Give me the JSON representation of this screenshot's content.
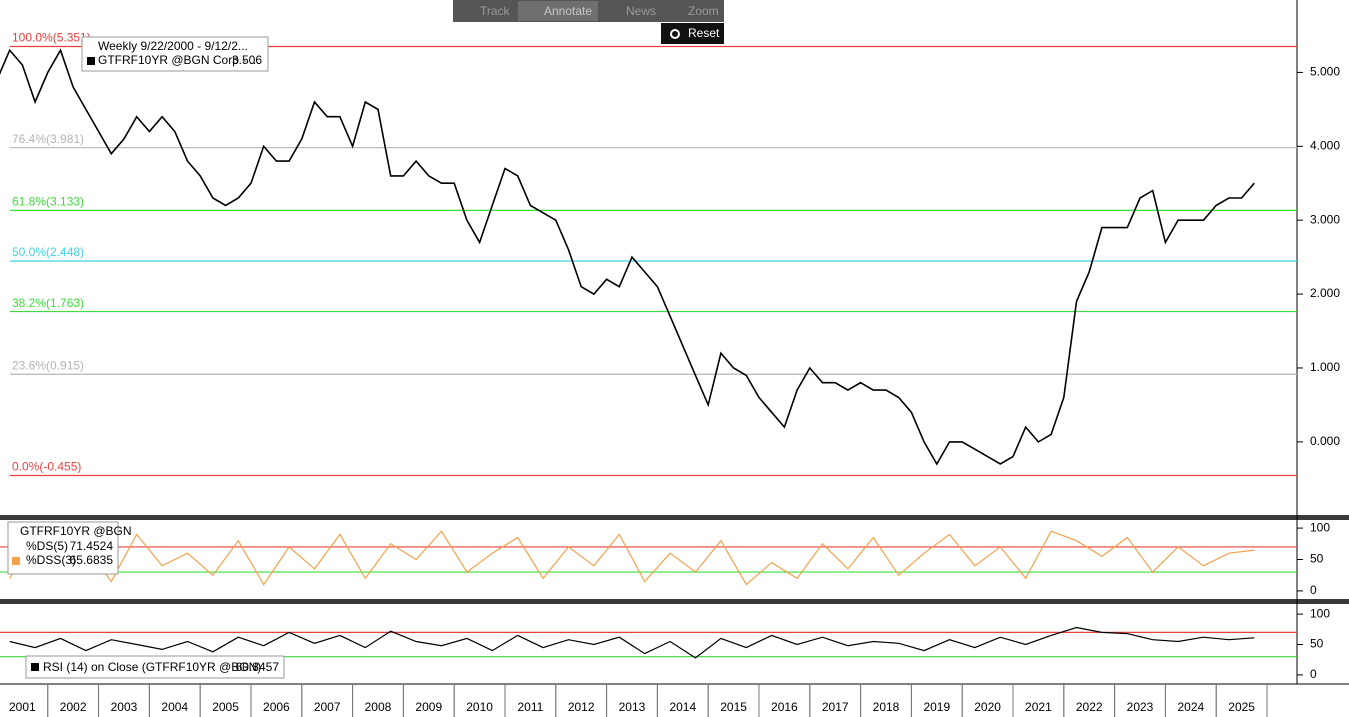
{
  "toolbar": [
    "Track",
    "Annotate",
    "News",
    "Zoom",
    "Reset"
  ],
  "chart_data": [
    {
      "type": "line",
      "subtitle": "Weekly 9/22/2000 - 9/12/2...",
      "xlim": [
        2001.06,
        2026.59
      ],
      "xticks": [
        {
          "value": 2001,
          "label": "2001"
        },
        {
          "value": 2002,
          "label": "2002"
        },
        {
          "value": 2003,
          "label": "2003"
        },
        {
          "value": 2004,
          "label": "2004"
        },
        {
          "value": 2005,
          "label": "2005"
        },
        {
          "value": 2006,
          "label": "2006"
        },
        {
          "value": 2007,
          "label": "2007"
        },
        {
          "value": 2008,
          "label": "2008"
        },
        {
          "value": 2009,
          "label": "2009"
        },
        {
          "value": 2010,
          "label": "2010"
        },
        {
          "value": 2011,
          "label": "2011"
        },
        {
          "value": 2012,
          "label": "2012"
        },
        {
          "value": 2013,
          "label": "2013"
        },
        {
          "value": 2014,
          "label": "2014"
        },
        {
          "value": 2015,
          "label": "2015"
        },
        {
          "value": 2016,
          "label": "2016"
        },
        {
          "value": 2017,
          "label": "2017"
        },
        {
          "value": 2018,
          "label": "2018"
        },
        {
          "value": 2019,
          "label": "2019"
        },
        {
          "value": 2020,
          "label": "2020"
        },
        {
          "value": 2021,
          "label": "2021"
        },
        {
          "value": 2022,
          "label": "2022"
        },
        {
          "value": 2023,
          "label": "2023"
        },
        {
          "value": 2024,
          "label": "2024"
        },
        {
          "value": 2025,
          "label": "2025"
        }
      ],
      "ylim": [
        -0.99,
        5.98
      ],
      "yticks": [
        {
          "value": 0,
          "label": "0.000"
        },
        {
          "value": 1,
          "label": "1.000"
        },
        {
          "value": 2,
          "label": "2.000"
        },
        {
          "value": 3,
          "label": "3.000"
        },
        {
          "value": 4,
          "label": "4.000"
        },
        {
          "value": 5,
          "label": "5.000"
        }
      ],
      "levels": [
        {
          "label": "100.0%(5.351)",
          "value": 5.351,
          "color": "#e8413c"
        },
        {
          "label": "76.4%(3.981)",
          "value": 3.981,
          "color": "#b4b4b4"
        },
        {
          "label": "61.8%(3.133)",
          "value": 3.133,
          "color": "#3cdc3c"
        },
        {
          "label": "50.0%(2.448)",
          "value": 2.448,
          "color": "#3cd4e4"
        },
        {
          "label": "38.2%(1.763)",
          "value": 1.763,
          "color": "#3cdc3c"
        },
        {
          "label": "23.6%(0.915)",
          "value": 0.915,
          "color": "#b4b4b4"
        },
        {
          "label": "0.0%(-0.455)",
          "value": -0.455,
          "color": "#e8413c"
        }
      ],
      "x": [
        2001.0,
        2001.25,
        2001.5,
        2001.75,
        2002.0,
        2002.25,
        2002.5,
        2002.75,
        2003.0,
        2003.25,
        2003.5,
        2003.75,
        2004.0,
        2004.25,
        2004.5,
        2004.75,
        2005.0,
        2005.25,
        2005.5,
        2005.75,
        2006.0,
        2006.25,
        2006.5,
        2006.75,
        2007.0,
        2007.25,
        2007.5,
        2007.75,
        2008.0,
        2008.25,
        2008.5,
        2008.75,
        2009.0,
        2009.25,
        2009.5,
        2009.75,
        2010.0,
        2010.25,
        2010.5,
        2010.75,
        2011.0,
        2011.25,
        2011.5,
        2011.75,
        2012.0,
        2012.25,
        2012.5,
        2012.75,
        2013.0,
        2013.25,
        2013.5,
        2013.75,
        2014.0,
        2014.25,
        2014.5,
        2014.75,
        2015.0,
        2015.25,
        2015.5,
        2015.75,
        2016.0,
        2016.25,
        2016.5,
        2016.75,
        2017.0,
        2017.25,
        2017.5,
        2017.75,
        2018.0,
        2018.25,
        2018.5,
        2018.75,
        2019.0,
        2019.25,
        2019.5,
        2019.75,
        2020.0,
        2020.25,
        2020.5,
        2020.75,
        2021.0,
        2021.25,
        2021.5,
        2021.75,
        2022.0,
        2022.25,
        2022.5,
        2022.75,
        2023.0,
        2023.25,
        2023.5,
        2023.75,
        2024.0,
        2024.25,
        2024.5,
        2024.75,
        2025.0,
        2025.25,
        2025.5,
        2025.75
      ],
      "series": [
        {
          "name": "GTFRF10YR @BGN Corp - ...",
          "last_value": 3.506,
          "color": "#000000",
          "values": [
            4.9,
            5.3,
            5.1,
            4.6,
            5.0,
            5.3,
            4.8,
            4.5,
            4.2,
            3.9,
            4.1,
            4.4,
            4.2,
            4.4,
            4.2,
            3.8,
            3.6,
            3.3,
            3.2,
            3.3,
            3.5,
            4.0,
            3.8,
            3.8,
            4.1,
            4.6,
            4.4,
            4.4,
            4.0,
            4.6,
            4.5,
            3.6,
            3.6,
            3.8,
            3.6,
            3.5,
            3.5,
            3.0,
            2.7,
            3.2,
            3.7,
            3.6,
            3.2,
            3.1,
            3.0,
            2.6,
            2.1,
            2.0,
            2.2,
            2.1,
            2.5,
            2.3,
            2.1,
            1.7,
            1.3,
            0.9,
            0.5,
            1.2,
            1.0,
            0.9,
            0.6,
            0.4,
            0.2,
            0.7,
            1.0,
            0.8,
            0.8,
            0.7,
            0.8,
            0.7,
            0.7,
            0.6,
            0.4,
            0.0,
            -0.3,
            0.0,
            0.0,
            -0.1,
            -0.2,
            -0.3,
            -0.2,
            0.2,
            0.0,
            0.1,
            0.6,
            1.9,
            2.3,
            2.9,
            2.9,
            2.9,
            3.3,
            3.4,
            2.7,
            3.0,
            3.0,
            3.0,
            3.2,
            3.3,
            3.3,
            3.5
          ]
        }
      ]
    },
    {
      "type": "line",
      "subtitle": "GTFRF10YR @BGN",
      "ylim": [
        -12.9,
        112.9
      ],
      "yticks": [
        0,
        50,
        100
      ],
      "levels": [
        {
          "value": 70,
          "color": "#e8413c"
        },
        {
          "value": 30,
          "color": "#3cdc3c"
        }
      ],
      "x": [
        2001.25,
        2001.75,
        2002.25,
        2002.75,
        2003.25,
        2003.75,
        2004.25,
        2004.75,
        2005.25,
        2005.75,
        2006.25,
        2006.75,
        2007.25,
        2007.75,
        2008.25,
        2008.75,
        2009.25,
        2009.75,
        2010.25,
        2010.75,
        2011.25,
        2011.75,
        2012.25,
        2012.75,
        2013.25,
        2013.75,
        2014.25,
        2014.75,
        2015.25,
        2015.75,
        2016.25,
        2016.75,
        2017.25,
        2017.75,
        2018.25,
        2018.75,
        2019.25,
        2019.75,
        2020.25,
        2020.75,
        2021.25,
        2021.75,
        2022.25,
        2022.75,
        2023.25,
        2023.75,
        2024.25,
        2024.75,
        2025.25,
        2025.75
      ],
      "series": [
        {
          "name": "%DS(5)",
          "last_value": 71.4524
        },
        {
          "name": "%DSS(3)",
          "last_value": 65.6835,
          "color": "#f5a04a",
          "values": [
            20,
            85,
            30,
            70,
            15,
            90,
            40,
            60,
            25,
            80,
            10,
            70,
            35,
            90,
            20,
            75,
            50,
            95,
            30,
            60,
            85,
            20,
            70,
            40,
            90,
            15,
            60,
            30,
            80,
            10,
            45,
            20,
            75,
            35,
            85,
            25,
            60,
            90,
            40,
            70,
            20,
            95,
            80,
            55,
            85,
            30,
            70,
            40,
            60,
            65
          ]
        }
      ]
    },
    {
      "type": "line",
      "ylim": [
        -15,
        116.7
      ],
      "yticks": [
        0,
        50,
        100
      ],
      "levels": [
        {
          "value": 70,
          "color": "#e8413c"
        },
        {
          "value": 30,
          "color": "#3cdc3c"
        }
      ],
      "x": [
        2001.25,
        2001.75,
        2002.25,
        2002.75,
        2003.25,
        2003.75,
        2004.25,
        2004.75,
        2005.25,
        2005.75,
        2006.25,
        2006.75,
        2007.25,
        2007.75,
        2008.25,
        2008.75,
        2009.25,
        2009.75,
        2010.25,
        2010.75,
        2011.25,
        2011.75,
        2012.25,
        2012.75,
        2013.25,
        2013.75,
        2014.25,
        2014.75,
        2015.25,
        2015.75,
        2016.25,
        2016.75,
        2017.25,
        2017.75,
        2018.25,
        2018.75,
        2019.25,
        2019.75,
        2020.25,
        2020.75,
        2021.25,
        2021.75,
        2022.25,
        2022.75,
        2023.25,
        2023.75,
        2024.25,
        2024.75,
        2025.25,
        2025.75
      ],
      "series": [
        {
          "name": "RSI (14) on Close (GTFRF10YR @BGN)",
          "last_value": 60.8457,
          "color": "#000000",
          "values": [
            55,
            45,
            60,
            40,
            58,
            50,
            42,
            55,
            38,
            62,
            48,
            70,
            52,
            65,
            45,
            72,
            55,
            48,
            60,
            40,
            65,
            45,
            58,
            50,
            62,
            35,
            55,
            28,
            60,
            45,
            65,
            50,
            62,
            48,
            55,
            52,
            40,
            58,
            45,
            62,
            50,
            65,
            78,
            70,
            68,
            58,
            55,
            62,
            58,
            61
          ]
        }
      ]
    }
  ]
}
